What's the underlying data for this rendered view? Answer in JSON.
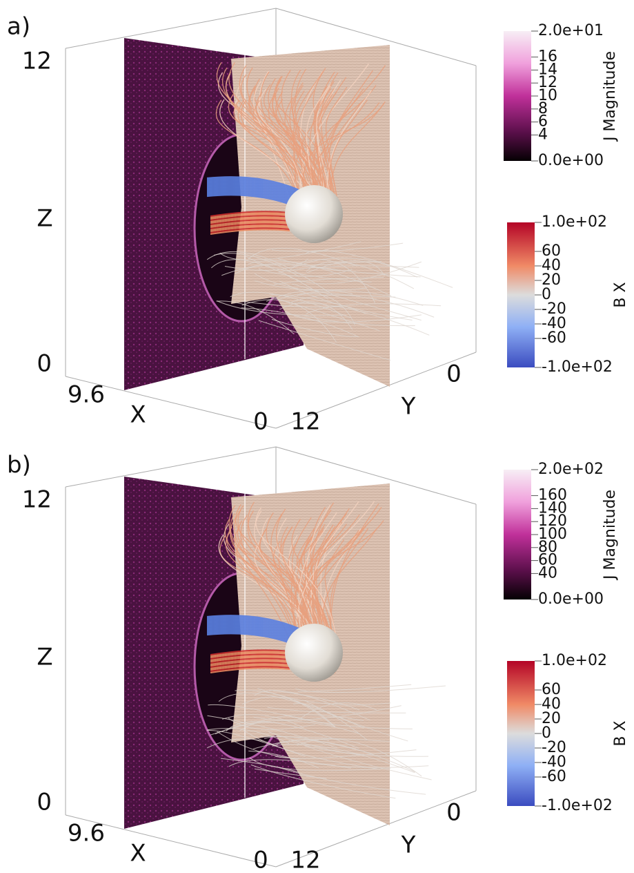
{
  "panels": [
    {
      "label": "a)",
      "z_axis": {
        "label": "Z",
        "ticks": [
          "12",
          "0"
        ]
      },
      "x_axis": {
        "label": "X",
        "ticks": [
          "9.6",
          "0"
        ]
      },
      "y_axis": {
        "label": "Y",
        "ticks": [
          "12",
          "0"
        ]
      },
      "colorbars": [
        {
          "title": "J Magnitude",
          "ticks": [
            {
              "value": 20,
              "label": "2.0e+01"
            },
            16,
            14,
            12,
            10,
            8,
            6,
            4,
            {
              "value": 0,
              "label": "0.0e+00"
            }
          ]
        },
        {
          "title": "B X",
          "ticks": [
            {
              "value": 100,
              "label": "1.0e+02"
            },
            60,
            40,
            20,
            0,
            -20,
            -40,
            -60,
            {
              "value": -100,
              "label": "-1.0e+02"
            }
          ]
        }
      ]
    },
    {
      "label": "b)",
      "z_axis": {
        "label": "Z",
        "ticks": [
          "12",
          "0"
        ]
      },
      "x_axis": {
        "label": "X",
        "ticks": [
          "9.6",
          "0"
        ]
      },
      "y_axis": {
        "label": "Y",
        "ticks": [
          "12",
          "0"
        ]
      },
      "colorbars": [
        {
          "title": "J Magnitude",
          "ticks": [
            {
              "value": 200,
              "label": "2.0e+02"
            },
            160,
            140,
            120,
            100,
            80,
            60,
            40,
            {
              "value": 0,
              "label": "0.0e+00"
            }
          ]
        },
        {
          "title": "B X",
          "ticks": [
            {
              "value": 100,
              "label": "1.0e+02"
            },
            60,
            40,
            20,
            0,
            -20,
            -40,
            -60,
            {
              "value": -100,
              "label": "-1.0e+02"
            }
          ]
        }
      ]
    }
  ]
}
